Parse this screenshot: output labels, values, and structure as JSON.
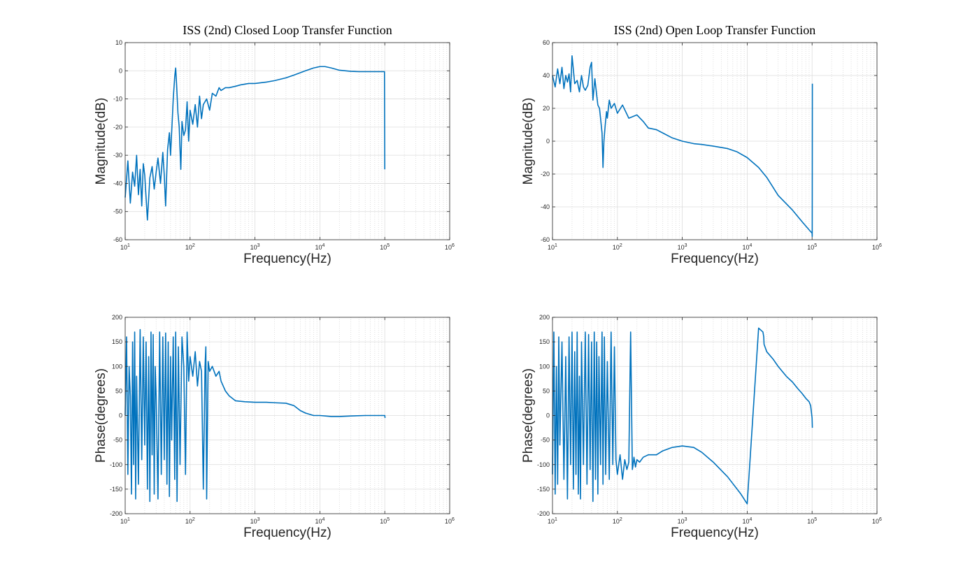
{
  "figure": {
    "background": "#ffffff",
    "line_color": "#0072bd"
  },
  "chart_data": [
    {
      "id": "cl-mag",
      "type": "line",
      "title": "ISS (2nd) Closed Loop Transfer Function",
      "xlabel": "Frequency(Hz)",
      "ylabel": "Magnitude(dB)",
      "xscale": "log",
      "xlim": [
        10,
        1000000
      ],
      "ylim": [
        -60,
        10
      ],
      "yticks": [
        -60,
        -50,
        -40,
        -30,
        -20,
        -10,
        0,
        10
      ],
      "xticks": [
        10,
        100,
        1000,
        10000,
        100000,
        1000000
      ],
      "xtick_labels": [
        {
          "b": "10",
          "e": "1"
        },
        {
          "b": "10",
          "e": "2"
        },
        {
          "b": "10",
          "e": "3"
        },
        {
          "b": "10",
          "e": "4"
        },
        {
          "b": "10",
          "e": "5"
        },
        {
          "b": "10",
          "e": "6"
        }
      ],
      "grid": true,
      "series": [
        {
          "values_x": [
            10,
            11,
            12,
            13,
            14,
            15,
            16,
            17,
            18,
            19,
            20,
            22,
            24,
            26,
            28,
            30,
            32,
            35,
            38,
            40,
            42,
            45,
            48,
            50,
            53,
            55,
            58,
            60,
            62,
            65,
            68,
            70,
            72,
            75,
            80,
            85,
            90,
            95,
            100,
            110,
            120,
            130,
            140,
            150,
            160,
            180,
            200,
            220,
            250,
            280,
            300,
            350,
            400,
            500,
            600,
            800,
            1000,
            1500,
            2000,
            3000,
            4000,
            6000,
            8000,
            10000,
            12000,
            15000,
            20000,
            30000,
            40000,
            60000,
            80000,
            99000,
            100000,
            100000
          ],
          "values_y": [
            -45,
            -32,
            -47,
            -36,
            -41,
            -30,
            -44,
            -35,
            -48,
            -33,
            -37,
            -53,
            -38,
            -34,
            -42,
            -36,
            -31,
            -40,
            -29,
            -37,
            -48,
            -28,
            -22,
            -30,
            -18,
            -10,
            -2,
            1,
            -5,
            -15,
            -20,
            -28,
            -35,
            -18,
            -23,
            -21,
            -11,
            -25,
            -14,
            -19,
            -12,
            -20,
            -9,
            -17,
            -12,
            -10,
            -14,
            -8,
            -9,
            -6,
            -7,
            -6,
            -6,
            -5.5,
            -5,
            -4.5,
            -4.5,
            -4,
            -3.5,
            -2.5,
            -1.5,
            0,
            1,
            1.5,
            1.5,
            1,
            0.2,
            -0.2,
            -0.3,
            -0.3,
            -0.3,
            -0.3,
            -35,
            -35
          ]
        }
      ]
    },
    {
      "id": "ol-mag",
      "type": "line",
      "title": "ISS (2nd) Open Loop Transfer Function",
      "xlabel": "Frequency(Hz)",
      "ylabel": "Magnitude(dB)",
      "xscale": "log",
      "xlim": [
        10,
        1000000
      ],
      "ylim": [
        -60,
        60
      ],
      "yticks": [
        -60,
        -40,
        -20,
        0,
        20,
        40,
        60
      ],
      "xticks": [
        10,
        100,
        1000,
        10000,
        100000,
        1000000
      ],
      "xtick_labels": [
        {
          "b": "10",
          "e": "1"
        },
        {
          "b": "10",
          "e": "2"
        },
        {
          "b": "10",
          "e": "3"
        },
        {
          "b": "10",
          "e": "4"
        },
        {
          "b": "10",
          "e": "5"
        },
        {
          "b": "10",
          "e": "6"
        }
      ],
      "grid": true,
      "series": [
        {
          "values_x": [
            10,
            11,
            12,
            13,
            14,
            15,
            16,
            17,
            18,
            19,
            20,
            22,
            24,
            26,
            28,
            30,
            32,
            35,
            38,
            40,
            42,
            45,
            48,
            50,
            53,
            55,
            58,
            60,
            62,
            65,
            68,
            70,
            75,
            80,
            90,
            100,
            120,
            150,
            200,
            250,
            300,
            400,
            500,
            700,
            1000,
            1500,
            2000,
            3000,
            5000,
            7000,
            10000,
            15000,
            20000,
            30000,
            50000,
            70000,
            90000,
            100000,
            100500,
            101000,
            101000
          ],
          "values_y": [
            40,
            33,
            44,
            35,
            45,
            32,
            40,
            36,
            41,
            30,
            52,
            35,
            37,
            30,
            40,
            33,
            31,
            34,
            45,
            48,
            25,
            38,
            28,
            22,
            20,
            14,
            5,
            -16,
            0,
            10,
            18,
            14,
            25,
            20,
            23,
            17,
            22,
            14,
            16,
            12,
            8,
            7,
            5,
            2,
            0,
            -1.5,
            -2,
            -3,
            -4.5,
            -6.5,
            -10,
            -16,
            -22,
            -33,
            -42,
            -49,
            -54,
            -56,
            -58,
            35,
            35
          ]
        }
      ]
    },
    {
      "id": "cl-phase",
      "type": "line",
      "title": "",
      "xlabel": "Frequency(Hz)",
      "ylabel": "Phase(degrees)",
      "xscale": "log",
      "xlim": [
        10,
        1000000
      ],
      "ylim": [
        -200,
        200
      ],
      "yticks": [
        -200,
        -150,
        -100,
        -50,
        0,
        50,
        100,
        150,
        200
      ],
      "xticks": [
        10,
        100,
        1000,
        10000,
        100000,
        1000000
      ],
      "xtick_labels": [
        {
          "b": "10",
          "e": "1"
        },
        {
          "b": "10",
          "e": "2"
        },
        {
          "b": "10",
          "e": "3"
        },
        {
          "b": "10",
          "e": "4"
        },
        {
          "b": "10",
          "e": "5"
        },
        {
          "b": "10",
          "e": "6"
        }
      ],
      "grid": true,
      "series": [
        {
          "values_x": [
            10,
            10.5,
            11,
            11.5,
            12,
            12.5,
            13,
            13.5,
            14,
            14.5,
            15,
            16,
            17,
            18,
            19,
            20,
            21,
            22,
            23,
            24,
            25,
            26,
            27,
            28,
            29,
            30,
            32,
            34,
            36,
            38,
            40,
            42,
            44,
            46,
            48,
            50,
            52,
            55,
            58,
            60,
            63,
            66,
            70,
            75,
            80,
            85,
            90,
            95,
            100,
            110,
            120,
            130,
            140,
            150,
            160,
            170,
            175,
            180,
            190,
            200,
            220,
            250,
            280,
            300,
            350,
            400,
            500,
            700,
            1000,
            1500,
            2000,
            3000,
            4000,
            5000,
            6000,
            8000,
            10000,
            15000,
            20000,
            30000,
            50000,
            100000,
            101000
          ],
          "values_y": [
            0,
            160,
            -120,
            100,
            40,
            -160,
            150,
            -100,
            170,
            -170,
            80,
            -140,
            175,
            -90,
            160,
            -60,
            150,
            -150,
            120,
            -175,
            170,
            -80,
            165,
            -160,
            100,
            40,
            -170,
            170,
            -120,
            160,
            -90,
            168,
            -140,
            150,
            -165,
            120,
            -50,
            160,
            -130,
            170,
            -175,
            140,
            -100,
            160,
            100,
            -120,
            170,
            70,
            120,
            80,
            130,
            60,
            110,
            90,
            -150,
            100,
            140,
            -170,
            110,
            90,
            100,
            80,
            90,
            70,
            50,
            40,
            30,
            28,
            27,
            27,
            26,
            25,
            20,
            10,
            5,
            0,
            0,
            -2,
            -2,
            -1,
            0,
            0,
            -5
          ]
        }
      ]
    },
    {
      "id": "ol-phase",
      "type": "line",
      "title": "",
      "xlabel": "Frequency(Hz)",
      "ylabel": "Phase(degrees)",
      "xscale": "log",
      "xlim": [
        10,
        1000000
      ],
      "ylim": [
        -200,
        200
      ],
      "yticks": [
        -200,
        -150,
        -100,
        -50,
        0,
        50,
        100,
        150,
        200
      ],
      "xticks": [
        10,
        100,
        1000,
        10000,
        100000,
        1000000
      ],
      "xtick_labels": [
        {
          "b": "10",
          "e": "1"
        },
        {
          "b": "10",
          "e": "2"
        },
        {
          "b": "10",
          "e": "3"
        },
        {
          "b": "10",
          "e": "4"
        },
        {
          "b": "10",
          "e": "5"
        },
        {
          "b": "10",
          "e": "6"
        }
      ],
      "grid": true,
      "series": [
        {
          "values_x": [
            10,
            10.5,
            11,
            11.5,
            12,
            12.5,
            13,
            14,
            15,
            16,
            17,
            18,
            19,
            20,
            21,
            22,
            23,
            24,
            25,
            26,
            27,
            28,
            30,
            32,
            34,
            36,
            38,
            40,
            42,
            44,
            46,
            48,
            50,
            52,
            55,
            58,
            60,
            63,
            66,
            70,
            75,
            80,
            85,
            90,
            95,
            100,
            110,
            120,
            130,
            140,
            150,
            160,
            170,
            175,
            180,
            190,
            200,
            220,
            250,
            300,
            400,
            500,
            700,
            1000,
            1500,
            2000,
            3000,
            5000,
            8000,
            10000,
            15000,
            17500,
            18000,
            18200,
            20000,
            25000,
            30000,
            40000,
            50000,
            60000,
            70000,
            80000,
            90000,
            95000,
            100000,
            101000
          ],
          "values_y": [
            -120,
            170,
            -160,
            100,
            -140,
            160,
            -60,
            150,
            -130,
            120,
            -170,
            160,
            -100,
            170,
            -150,
            130,
            -120,
            170,
            -160,
            80,
            -170,
            150,
            -100,
            170,
            -140,
            165,
            -110,
            150,
            -175,
            170,
            -130,
            150,
            -160,
            120,
            -100,
            170,
            -140,
            160,
            -120,
            110,
            -130,
            170,
            -100,
            140,
            -90,
            -120,
            -80,
            -130,
            -90,
            -110,
            -95,
            170,
            -110,
            -100,
            -85,
            -105,
            -90,
            -95,
            -85,
            -80,
            -80,
            -72,
            -65,
            -62,
            -65,
            -75,
            -95,
            -125,
            -160,
            -180,
            178,
            170,
            160,
            145,
            130,
            115,
            100,
            80,
            68,
            55,
            45,
            35,
            28,
            20,
            -5,
            -25
          ]
        }
      ]
    }
  ]
}
